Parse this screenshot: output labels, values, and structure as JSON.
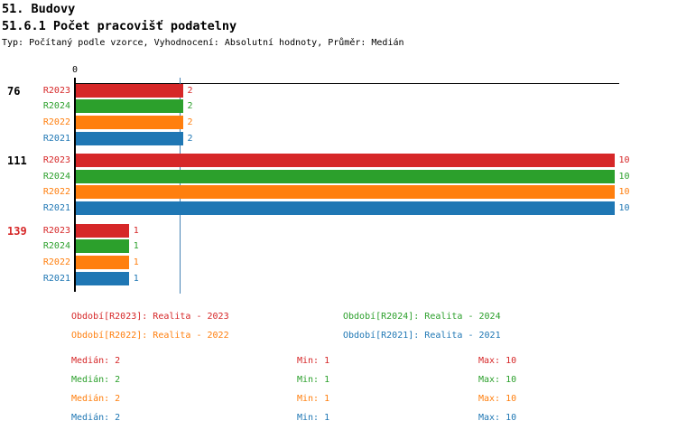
{
  "header": {
    "title": "51. Budovy",
    "subtitle": "51.6.1 Počet pracovišť podatelny",
    "meta": "Typ: Počítaný podle vzorce, Vyhodnocení: Absolutní hodnoty, Průměr: Medián"
  },
  "colors": {
    "R2023": "#d62728",
    "R2024": "#2ca02c",
    "R2022": "#ff7f0e",
    "R2021": "#1f77b4",
    "axis": "#000000",
    "median_line": "#4682b4"
  },
  "chart_data": {
    "type": "bar",
    "orientation": "horizontal",
    "title": "51.6.1 Počet pracovišť podatelny",
    "x_range": [
      0,
      10
    ],
    "x_tick_labels": [
      "0"
    ],
    "median_line_value": 2,
    "grid": false,
    "series_order": [
      "R2023",
      "R2024",
      "R2022",
      "R2021"
    ],
    "groups": [
      {
        "label": "76",
        "label_color": "#000000",
        "values": [
          2,
          2,
          2,
          2
        ]
      },
      {
        "label": "111",
        "label_color": "#000000",
        "values": [
          10,
          10,
          10,
          10
        ]
      },
      {
        "label": "139",
        "label_color": "#d62728",
        "values": [
          1,
          1,
          1,
          1
        ]
      }
    ]
  },
  "legend": {
    "columns": [
      [
        {
          "series": "R2023",
          "label": "Období[R2023]: Realita - 2023",
          "color": "#d62728"
        },
        {
          "series": "R2022",
          "label": "Období[R2022]: Realita - 2022",
          "color": "#ff7f0e"
        }
      ],
      [
        {
          "series": "R2024",
          "label": "Období[R2024]: Realita - 2024",
          "color": "#2ca02c"
        },
        {
          "series": "R2021",
          "label": "Období[R2021]: Realita - 2021",
          "color": "#1f77b4"
        }
      ]
    ]
  },
  "stats": {
    "rows": [
      {
        "series": "R2023",
        "color": "#d62728",
        "median": "Medián: 2",
        "min": "Min: 1",
        "max": "Max: 10"
      },
      {
        "series": "R2024",
        "color": "#2ca02c",
        "median": "Medián: 2",
        "min": "Min: 1",
        "max": "Max: 10"
      },
      {
        "series": "R2022",
        "color": "#ff7f0e",
        "median": "Medián: 2",
        "min": "Min: 1",
        "max": "Max: 10"
      },
      {
        "series": "R2021",
        "color": "#1f77b4",
        "median": "Medián: 2",
        "min": "Min: 1",
        "max": "Max: 10"
      }
    ]
  }
}
